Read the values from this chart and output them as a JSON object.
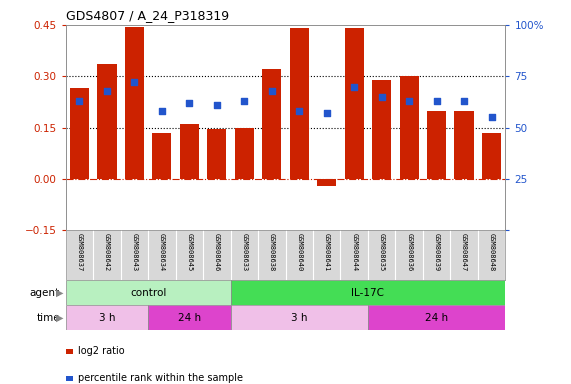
{
  "title": "GDS4807 / A_24_P318319",
  "samples": [
    "GSM808637",
    "GSM808642",
    "GSM808643",
    "GSM808634",
    "GSM808645",
    "GSM808646",
    "GSM808633",
    "GSM808638",
    "GSM808640",
    "GSM808641",
    "GSM808644",
    "GSM808635",
    "GSM808636",
    "GSM808639",
    "GSM808647",
    "GSM808648"
  ],
  "log2_ratio": [
    0.265,
    0.335,
    0.445,
    0.135,
    0.16,
    0.145,
    0.148,
    0.32,
    0.44,
    -0.02,
    0.44,
    0.29,
    0.3,
    0.2,
    0.2,
    0.135
  ],
  "percentile": [
    63,
    68,
    72,
    58,
    62,
    61,
    63,
    68,
    58,
    57,
    70,
    65,
    63,
    63,
    63,
    55
  ],
  "bar_color": "#cc2200",
  "dot_color": "#2255cc",
  "ylim_left": [
    -0.15,
    0.45
  ],
  "ylim_right": [
    0,
    100
  ],
  "yticks_left": [
    -0.15,
    0.0,
    0.15,
    0.3,
    0.45
  ],
  "yticks_right": [
    0,
    25,
    50,
    75,
    100
  ],
  "hlines_dotted": [
    0.15,
    0.3
  ],
  "hline_zero_color": "#cc2200",
  "agent_groups": [
    {
      "label": "control",
      "start": 0,
      "end": 6,
      "color": "#b8f0c0"
    },
    {
      "label": "IL-17C",
      "start": 6,
      "end": 16,
      "color": "#44dd55"
    }
  ],
  "time_groups": [
    {
      "label": "3 h",
      "start": 0,
      "end": 3,
      "color": "#f0c0e8"
    },
    {
      "label": "24 h",
      "start": 3,
      "end": 6,
      "color": "#dd44cc"
    },
    {
      "label": "3 h",
      "start": 6,
      "end": 11,
      "color": "#f0c0e8"
    },
    {
      "label": "24 h",
      "start": 11,
      "end": 16,
      "color": "#dd44cc"
    }
  ],
  "legend_items": [
    {
      "label": "log2 ratio",
      "color": "#cc2200"
    },
    {
      "label": "percentile rank within the sample",
      "color": "#2255cc"
    }
  ],
  "bg_gray": "#d8d8d8",
  "plot_bg": "#ffffff"
}
